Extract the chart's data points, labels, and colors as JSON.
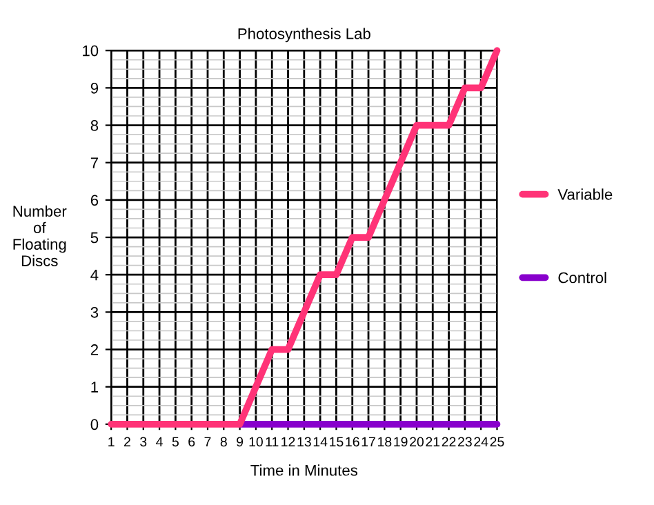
{
  "chart_data": {
    "type": "line",
    "title": "Photosynthesis Lab",
    "xlabel": "Time in Minutes",
    "ylabel": "Number\nof\nFloating\nDiscs",
    "x": [
      1,
      2,
      3,
      4,
      5,
      6,
      7,
      8,
      9,
      10,
      11,
      12,
      13,
      14,
      15,
      16,
      17,
      18,
      19,
      20,
      21,
      22,
      23,
      24,
      25
    ],
    "series": [
      {
        "name": "Variable",
        "color": "#ff3377",
        "values": [
          0,
          0,
          0,
          0,
          0,
          0,
          0,
          0,
          0,
          1,
          2,
          2,
          3,
          4,
          4,
          5,
          5,
          6,
          7,
          8,
          8,
          8,
          9,
          9,
          10
        ]
      },
      {
        "name": "Control",
        "color": "#8800cc",
        "values": [
          null,
          null,
          null,
          null,
          null,
          null,
          null,
          null,
          0,
          0,
          0,
          0,
          0,
          0,
          0,
          0,
          0,
          0,
          0,
          0,
          0,
          0,
          0,
          0,
          0
        ]
      }
    ],
    "xlim": [
      1,
      25
    ],
    "xticks": [
      1,
      2,
      3,
      4,
      5,
      6,
      7,
      8,
      9,
      10,
      11,
      12,
      13,
      14,
      15,
      16,
      17,
      18,
      19,
      20,
      21,
      22,
      23,
      24,
      25
    ],
    "ylim": [
      0,
      10
    ],
    "yticks": [
      0,
      1,
      2,
      3,
      4,
      5,
      6,
      7,
      8,
      9,
      10
    ],
    "grid": true,
    "legend": "right",
    "marker": "none",
    "line_style": "solid"
  }
}
